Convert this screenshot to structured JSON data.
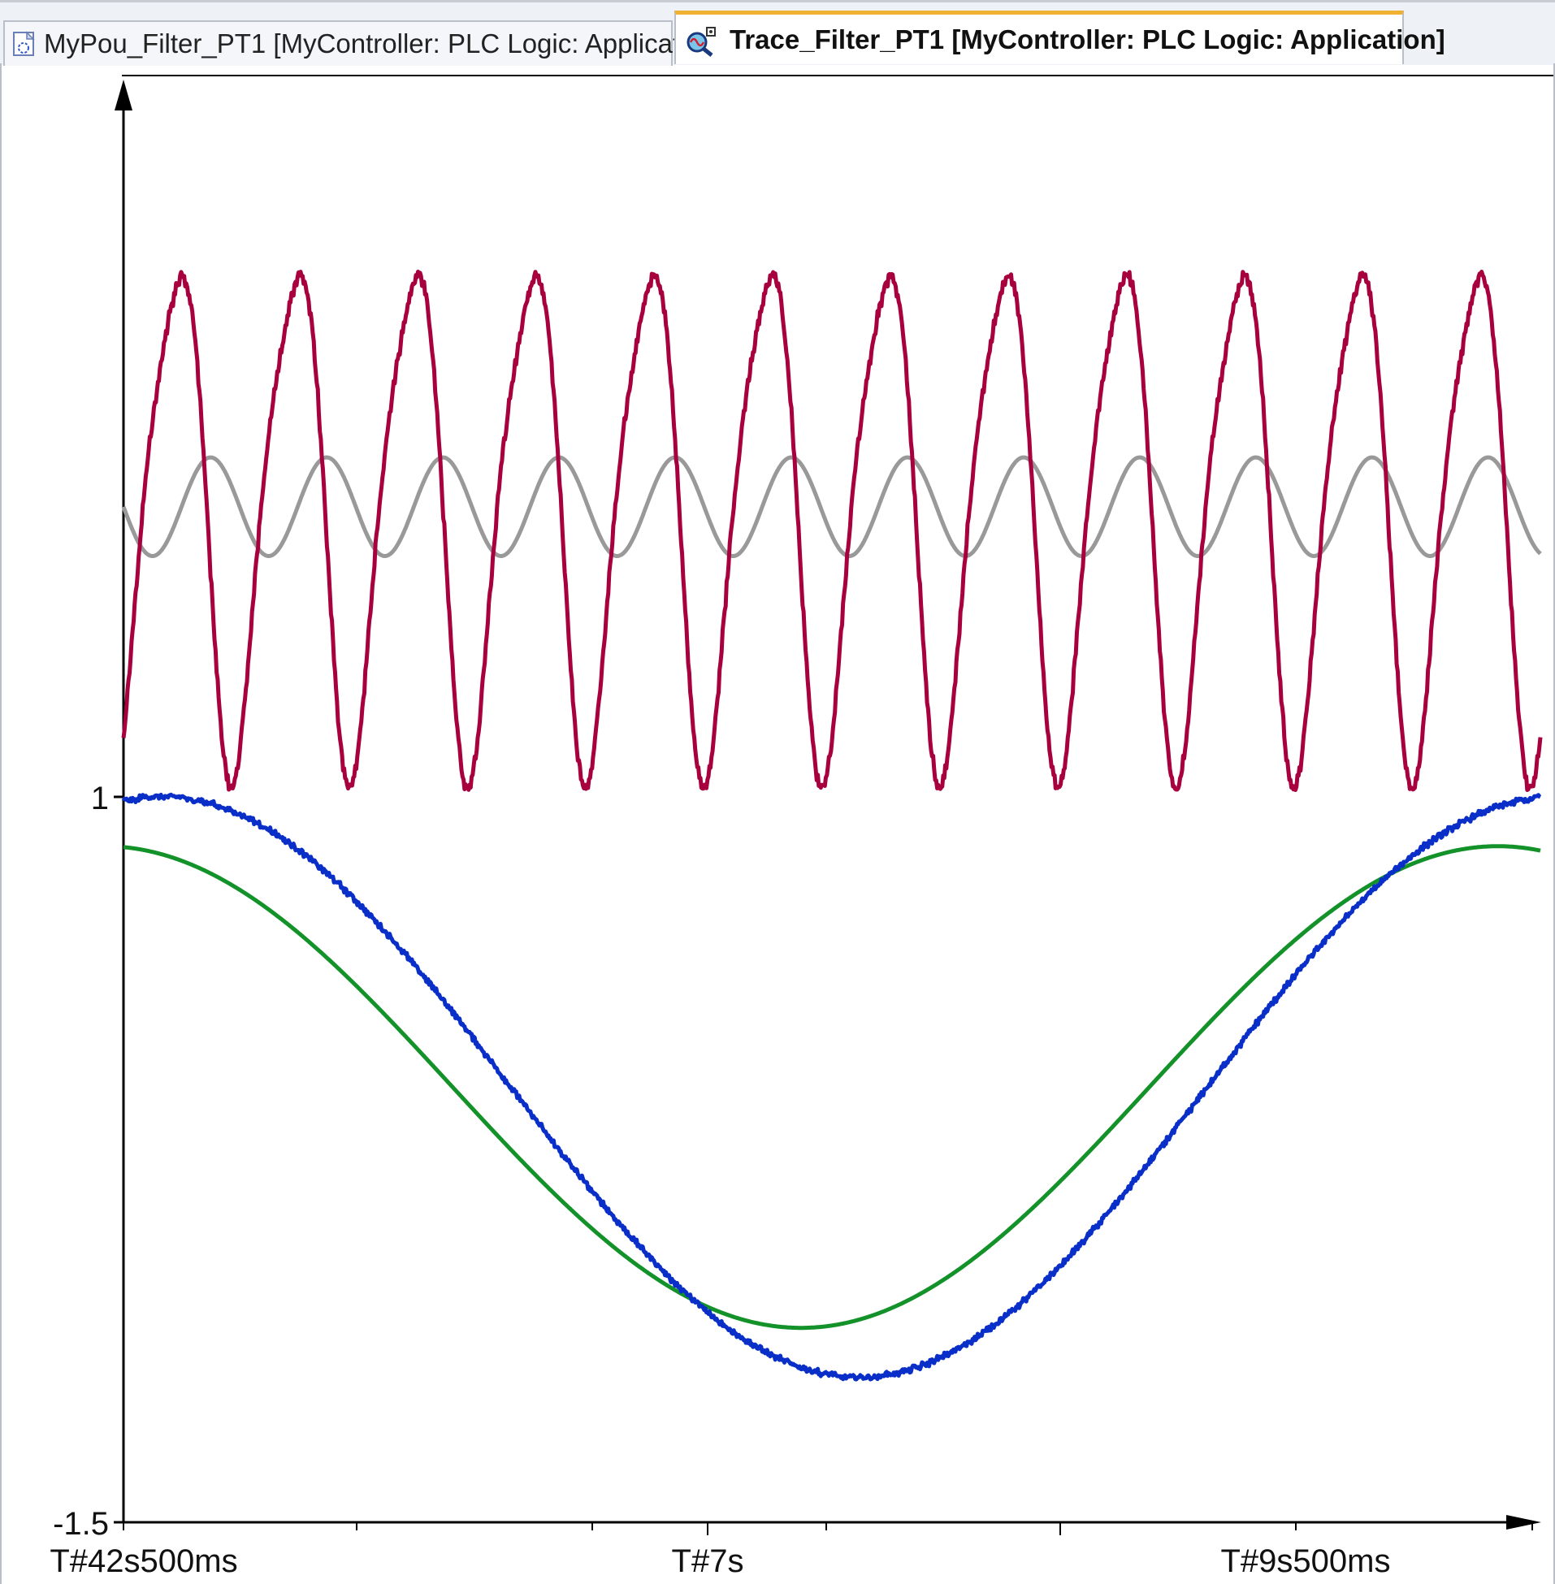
{
  "tabs": [
    {
      "label": "MyPou_Filter_PT1 [MyController: PLC Logic: Application]",
      "active": false,
      "icon": "pou-icon"
    },
    {
      "label": "Trace_Filter_PT1 [MyController: PLC Logic: Application]",
      "active": true,
      "icon": "trace-icon"
    }
  ],
  "chart_data": {
    "type": "line",
    "title": "",
    "xlabel": "",
    "ylabel": "",
    "grid": false,
    "legend": "none",
    "y_ticks": [
      "1",
      "-1.5"
    ],
    "x_ticks": [
      "T#42s500ms",
      "T#7s",
      "T#9s500ms"
    ],
    "xlim": [
      4.5,
      10.6
    ],
    "ylim": [
      -1.5,
      1.5
    ],
    "series": [
      {
        "color": "#a8003e",
        "kind": "noisy_fast_sine",
        "values": {
          "center": 2.0,
          "amplitude": 1.0,
          "periods": 12,
          "start_phase_deg": 0
        }
      },
      {
        "color": "#999999",
        "kind": "fast_sine",
        "values": {
          "center": 2.0,
          "amplitude": 0.17,
          "periods": 12.2,
          "start_phase_deg": 90
        }
      },
      {
        "color": "#0a2fc8",
        "kind": "noisy_slow_sine",
        "values": {
          "center": 0.0,
          "amplitude": 1.0,
          "period_s": 6.0,
          "phase_deg": 80
        }
      },
      {
        "color": "#14922a",
        "kind": "slow_sine",
        "values": {
          "center": 0.0,
          "amplitude": 0.83,
          "period_s": 6.0,
          "phase_deg": 95
        }
      }
    ]
  }
}
